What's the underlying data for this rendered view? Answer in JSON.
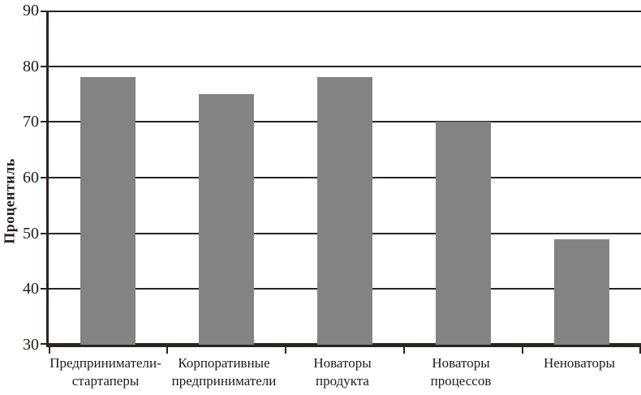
{
  "chart_data": {
    "type": "bar",
    "title": "",
    "xlabel": "",
    "ylabel": "Процентиль",
    "categories": [
      "Предприниматели-стартаперы",
      "Корпоративные предприниматели",
      "Новаторы продукта",
      "Новаторы процессов",
      "Неноваторы"
    ],
    "category_lines": [
      [
        "Предприниматели-",
        "стартаперы"
      ],
      [
        "Корпоративные",
        "предприниматели"
      ],
      [
        "Новаторы",
        "продукта"
      ],
      [
        "Новаторы",
        "процессов"
      ],
      [
        "Неноваторы"
      ]
    ],
    "values": [
      78,
      75,
      78,
      70,
      49
    ],
    "ylim": [
      30,
      90
    ],
    "yticks": [
      90,
      80,
      70,
      60,
      50,
      40,
      30
    ],
    "grid": true,
    "legend_position": "none",
    "bar_color": "#838383",
    "axis_color": "#2b241e",
    "text_color": "#211b15",
    "background_color": "#ffffff"
  }
}
